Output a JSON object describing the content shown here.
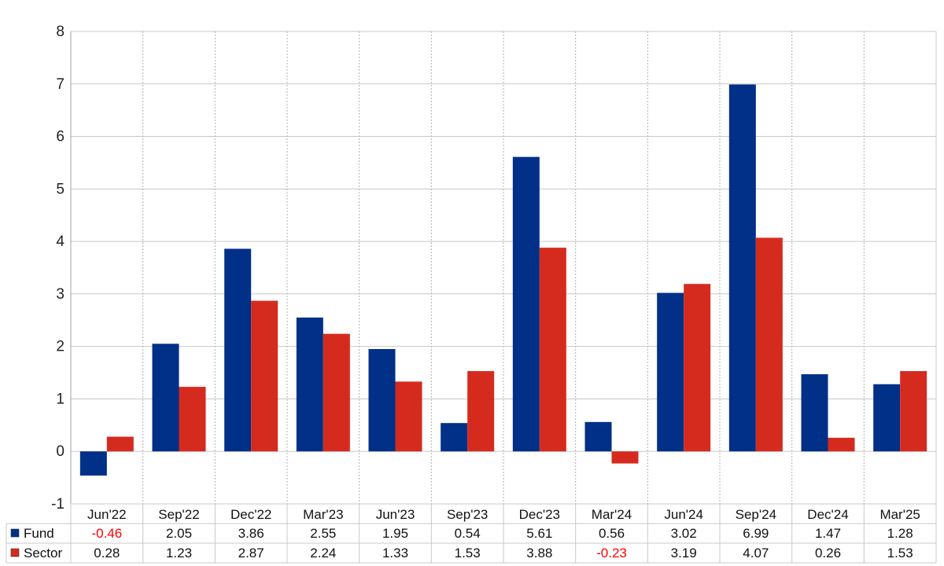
{
  "chart_data": {
    "type": "bar",
    "categories": [
      "Jun'22",
      "Sep'22",
      "Dec'22",
      "Mar'23",
      "Jun'23",
      "Sep'23",
      "Dec'23",
      "Mar'24",
      "Jun'24",
      "Sep'24",
      "Dec'24",
      "Mar'25"
    ],
    "series": [
      {
        "name": "Fund",
        "color": "#003087",
        "values": [
          -0.46,
          2.05,
          3.86,
          2.55,
          1.95,
          0.54,
          5.61,
          0.56,
          3.02,
          6.99,
          1.47,
          1.28
        ],
        "labels": [
          "-0.46",
          "2.05",
          "3.86",
          "2.55",
          "1.95",
          "0.54",
          "5.61",
          "0.56",
          "3.02",
          "6.99",
          "1.47",
          "1.28"
        ]
      },
      {
        "name": "Sector",
        "color": "#d52b1e",
        "values": [
          0.28,
          1.23,
          2.87,
          2.24,
          1.33,
          1.53,
          3.88,
          -0.23,
          3.19,
          4.07,
          0.26,
          1.53
        ],
        "labels": [
          "0.28",
          "1.23",
          "2.87",
          "2.24",
          "1.33",
          "1.53",
          "3.88",
          "-0.23",
          "3.19",
          "4.07",
          "0.26",
          "1.53"
        ]
      }
    ],
    "ylim": [
      -1,
      8
    ],
    "yticks": [
      "8",
      "7",
      "6",
      "5",
      "4",
      "3",
      "2",
      "1",
      "0",
      "-1"
    ],
    "grid": true,
    "negative_value_color": "#ff0000",
    "legend": "data table below chart"
  }
}
